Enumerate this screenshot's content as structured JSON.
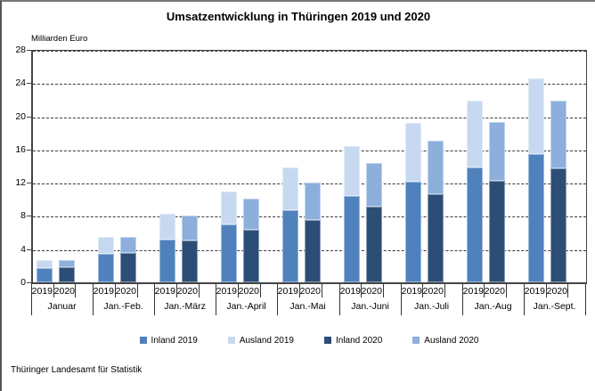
{
  "page": {
    "title": "Umsatzentwicklung in Thüringen 2019 und 2020",
    "y_axis_title": "Milliarden Euro",
    "footer": "Thüringer Landesamt für Statistik"
  },
  "chart_data": {
    "type": "bar",
    "stacked": true,
    "grouped": true,
    "title": "Umsatzentwicklung in Thüringen 2019 und 2020",
    "xlabel": "",
    "ylabel": "Milliarden Euro",
    "ylim": [
      0,
      28
    ],
    "yticks": [
      0,
      4,
      8,
      12,
      16,
      20,
      24,
      28
    ],
    "grid": "horizontal-dashed",
    "legend_position": "bottom",
    "categories": [
      "Januar",
      "Jan.-Feb.",
      "Jan.-März",
      "Jan.-April",
      "Jan.-Mai",
      "Jan.-Juni",
      "Jan.-Juli",
      "Jan.-Aug",
      "Jan.-Sept."
    ],
    "bar_labels": [
      "2019",
      "2020"
    ],
    "series": [
      {
        "name": "Inland 2019",
        "bar": "2019",
        "stack_order": 0,
        "color": "#4F81BD",
        "values": [
          1.7,
          3.4,
          5.2,
          7.0,
          8.7,
          10.4,
          12.1,
          13.8,
          15.4
        ]
      },
      {
        "name": "Ausland 2019",
        "bar": "2019",
        "stack_order": 1,
        "color": "#C7D9F0",
        "values": [
          1.0,
          2.0,
          3.1,
          4.0,
          5.1,
          6.0,
          7.1,
          8.0,
          9.1
        ]
      },
      {
        "name": "Inland 2020",
        "bar": "2020",
        "stack_order": 0,
        "color": "#2C4D75",
        "values": [
          1.8,
          3.5,
          5.0,
          6.3,
          7.5,
          9.1,
          10.6,
          12.2,
          13.7
        ]
      },
      {
        "name": "Ausland 2020",
        "bar": "2020",
        "stack_order": 1,
        "color": "#8CAFDC",
        "values": [
          0.9,
          1.9,
          3.0,
          3.8,
          4.5,
          5.3,
          6.4,
          7.1,
          8.2
        ]
      }
    ],
    "bar_totals_2019": [
      2.7,
      5.4,
      8.3,
      11.0,
      13.8,
      16.4,
      19.2,
      21.8,
      24.5
    ],
    "bar_totals_2020": [
      2.7,
      5.4,
      8.0,
      10.1,
      12.0,
      14.4,
      17.0,
      19.3,
      21.9
    ]
  }
}
